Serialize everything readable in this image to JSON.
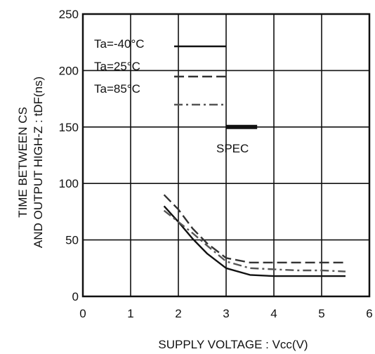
{
  "chart_data": {
    "type": "line",
    "xlabel": "SUPPLY VOLTAGE : Vcc(V)",
    "ylabel_line1": "TIME BETWEEN CS",
    "ylabel_line2": "AND OUTPUT HIGH-Z : tDF(ns)",
    "xlim": [
      0,
      6
    ],
    "ylim": [
      0,
      250
    ],
    "x_ticks": [
      0,
      1,
      2,
      3,
      4,
      5,
      6
    ],
    "y_ticks": [
      0,
      50,
      100,
      150,
      200,
      250
    ],
    "x_tick_labels": [
      "0",
      "1",
      "2",
      "3",
      "4",
      "5",
      "6"
    ],
    "y_tick_labels": [
      "0",
      "50",
      "100",
      "150",
      "200",
      "250"
    ],
    "grid": true,
    "legend_position": "top-left",
    "series": [
      {
        "name": "Ta=-40°C",
        "style": "solid",
        "color": "#111111",
        "x": [
          1.7,
          2.0,
          2.3,
          2.6,
          3.0,
          3.5,
          4.0,
          4.5,
          5.0,
          5.5
        ],
        "y": [
          80,
          66,
          51,
          38,
          25,
          19,
          18,
          18,
          18,
          18
        ]
      },
      {
        "name": "Ta=25°C",
        "style": "dashed",
        "color": "#333333",
        "x": [
          1.7,
          2.0,
          2.3,
          2.6,
          3.0,
          3.5,
          4.0,
          4.5,
          5.0,
          5.5
        ],
        "y": [
          90,
          77,
          60,
          47,
          34,
          30,
          30,
          30,
          30,
          30
        ]
      },
      {
        "name": "Ta=85°C",
        "style": "dashdot",
        "color": "#555555",
        "x": [
          1.7,
          2.0,
          2.3,
          2.6,
          3.0,
          3.5,
          4.0,
          4.5,
          5.0,
          5.5
        ],
        "y": [
          76,
          66,
          56,
          45,
          31,
          25,
          24,
          23,
          23,
          22
        ]
      }
    ],
    "spec": {
      "label": "SPEC",
      "x": [
        3.0,
        3.65
      ],
      "y": 150
    }
  }
}
